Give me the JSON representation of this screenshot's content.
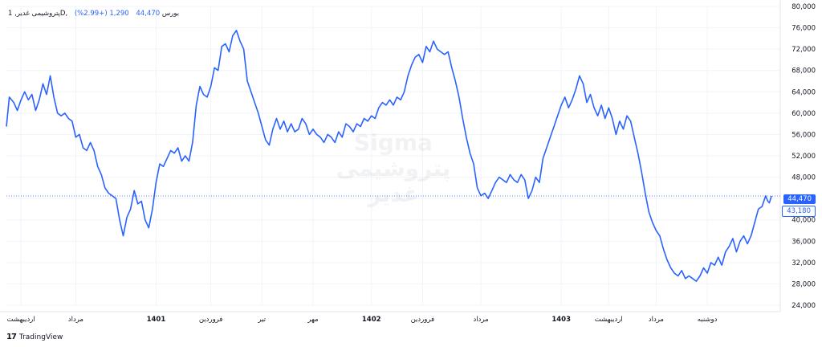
{
  "header": {
    "symbol_line": "پتروشیمی غدیر, 1D, بورس",
    "last": "44,470",
    "change": "1,290 (+2.99%)"
  },
  "watermark": {
    "brand": "Sigma",
    "name": "پتروشیمی غدیر"
  },
  "branding": {
    "logo": "17",
    "name": "TradingView"
  },
  "colors": {
    "line": "#2962ff",
    "grid": "#f0f3fa",
    "axis_text": "#131722"
  },
  "price_tags": {
    "last": "44,470",
    "low": "43,180"
  },
  "chart_data": {
    "type": "line",
    "title": "",
    "xlabel": "",
    "ylabel": "",
    "ylim": [
      24000,
      80000
    ],
    "y_ticks": [
      24000,
      28000,
      32000,
      36000,
      40000,
      44000,
      48000,
      52000,
      56000,
      60000,
      64000,
      68000,
      72000,
      76000,
      80000
    ],
    "y_tick_labels": [
      "24,000",
      "28,000",
      "32,000",
      "36,000",
      "40,000",
      "44,000",
      "48,000",
      "52,000",
      "56,000",
      "60,000",
      "64,000",
      "68,000",
      "72,000",
      "76,000",
      "80,000"
    ],
    "x_ticks": [
      {
        "label": "اردیبهشت",
        "pos": 2,
        "bold": false
      },
      {
        "label": "مرداد",
        "pos": 9.5,
        "bold": false
      },
      {
        "label": "1401",
        "pos": 20.5,
        "bold": true
      },
      {
        "label": "فروردین",
        "pos": 28,
        "bold": false
      },
      {
        "label": "تیر",
        "pos": 35,
        "bold": false
      },
      {
        "label": "مهر",
        "pos": 42,
        "bold": false
      },
      {
        "label": "1402",
        "pos": 50,
        "bold": true
      },
      {
        "label": "فروردین",
        "pos": 57,
        "bold": false
      },
      {
        "label": "مرداد",
        "pos": 65,
        "bold": false
      },
      {
        "label": "1403",
        "pos": 76,
        "bold": true
      },
      {
        "label": "اردیبهشت",
        "pos": 82.5,
        "bold": false
      },
      {
        "label": "مرداد",
        "pos": 89,
        "bold": false
      },
      {
        "label": "دوشنبه",
        "pos": 96,
        "bold": false
      }
    ],
    "last_price": 44470,
    "series": [
      {
        "color": "#2962ff",
        "points": [
          [
            0,
            57500
          ],
          [
            0.4,
            63000
          ],
          [
            1,
            62000
          ],
          [
            1.5,
            60500
          ],
          [
            2,
            62500
          ],
          [
            2.5,
            64000
          ],
          [
            3,
            62500
          ],
          [
            3.5,
            63500
          ],
          [
            4,
            60500
          ],
          [
            4.5,
            62500
          ],
          [
            5,
            65500
          ],
          [
            5.5,
            63500
          ],
          [
            6,
            67000
          ],
          [
            6.5,
            63000
          ],
          [
            7,
            60000
          ],
          [
            7.5,
            59500
          ],
          [
            8,
            60000
          ],
          [
            8.5,
            59000
          ],
          [
            9,
            58500
          ],
          [
            9.5,
            55500
          ],
          [
            10,
            56000
          ],
          [
            10.5,
            53500
          ],
          [
            11,
            53000
          ],
          [
            11.5,
            54500
          ],
          [
            12,
            53000
          ],
          [
            12.5,
            50000
          ],
          [
            13,
            48500
          ],
          [
            13.5,
            46000
          ],
          [
            14,
            45000
          ],
          [
            14.5,
            44500
          ],
          [
            15,
            44000
          ],
          [
            15.5,
            40000
          ],
          [
            16,
            37000
          ],
          [
            16.5,
            40500
          ],
          [
            17,
            42000
          ],
          [
            17.5,
            45500
          ],
          [
            18,
            43000
          ],
          [
            18.5,
            43500
          ],
          [
            19,
            40000
          ],
          [
            19.5,
            38500
          ],
          [
            20,
            42000
          ],
          [
            20.5,
            47000
          ],
          [
            21,
            50500
          ],
          [
            21.5,
            50000
          ],
          [
            22,
            51500
          ],
          [
            22.5,
            53000
          ],
          [
            23,
            52500
          ],
          [
            23.5,
            53500
          ],
          [
            24,
            51000
          ],
          [
            24.5,
            52000
          ],
          [
            25,
            51000
          ],
          [
            25.5,
            54500
          ],
          [
            26,
            61500
          ],
          [
            26.5,
            65000
          ],
          [
            27,
            63500
          ],
          [
            27.5,
            63000
          ],
          [
            28,
            65000
          ],
          [
            28.5,
            68500
          ],
          [
            29,
            68000
          ],
          [
            29.5,
            72500
          ],
          [
            30,
            73000
          ],
          [
            30.5,
            71500
          ],
          [
            31,
            74500
          ],
          [
            31.5,
            75500
          ],
          [
            32,
            73500
          ],
          [
            32.5,
            72000
          ],
          [
            33,
            66000
          ],
          [
            33.5,
            64000
          ],
          [
            34,
            62000
          ],
          [
            34.5,
            60000
          ],
          [
            35,
            57500
          ],
          [
            35.5,
            55000
          ],
          [
            36,
            54000
          ],
          [
            36.5,
            57000
          ],
          [
            37,
            59000
          ],
          [
            37.5,
            57000
          ],
          [
            38,
            58500
          ],
          [
            38.5,
            56500
          ],
          [
            39,
            58000
          ],
          [
            39.5,
            56500
          ],
          [
            40,
            57000
          ],
          [
            40.5,
            59000
          ],
          [
            41,
            58000
          ],
          [
            41.5,
            56000
          ],
          [
            42,
            57000
          ],
          [
            42.5,
            56000
          ],
          [
            43,
            55500
          ],
          [
            43.5,
            54500
          ],
          [
            44,
            56000
          ],
          [
            44.5,
            55500
          ],
          [
            45,
            54500
          ],
          [
            45.5,
            56500
          ],
          [
            46,
            55500
          ],
          [
            46.5,
            58000
          ],
          [
            47,
            57500
          ],
          [
            47.5,
            56500
          ],
          [
            48,
            58000
          ],
          [
            48.5,
            57500
          ],
          [
            49,
            59000
          ],
          [
            49.5,
            58500
          ],
          [
            50,
            59500
          ],
          [
            50.5,
            59000
          ],
          [
            51,
            61000
          ],
          [
            51.5,
            62000
          ],
          [
            52,
            61500
          ],
          [
            52.5,
            62500
          ],
          [
            53,
            61500
          ],
          [
            53.5,
            63000
          ],
          [
            54,
            62500
          ],
          [
            54.5,
            64000
          ],
          [
            55,
            67000
          ],
          [
            55.5,
            69000
          ],
          [
            56,
            70500
          ],
          [
            56.5,
            71000
          ],
          [
            57,
            69500
          ],
          [
            57.5,
            72500
          ],
          [
            58,
            71500
          ],
          [
            58.5,
            73500
          ],
          [
            59,
            72000
          ],
          [
            59.5,
            71500
          ],
          [
            60,
            71000
          ],
          [
            60.5,
            71500
          ],
          [
            61,
            68500
          ],
          [
            61.5,
            66000
          ],
          [
            62,
            63000
          ],
          [
            62.5,
            59000
          ],
          [
            63,
            55500
          ],
          [
            63.5,
            52500
          ],
          [
            64,
            50500
          ],
          [
            64.5,
            46000
          ],
          [
            65,
            44500
          ],
          [
            65.5,
            45000
          ],
          [
            66,
            44000
          ],
          [
            66.5,
            45500
          ],
          [
            67,
            47000
          ],
          [
            67.5,
            48000
          ],
          [
            68,
            47500
          ],
          [
            68.5,
            47000
          ],
          [
            69,
            48500
          ],
          [
            69.5,
            47500
          ],
          [
            70,
            47000
          ],
          [
            70.5,
            48500
          ],
          [
            71,
            47500
          ],
          [
            71.5,
            44000
          ],
          [
            72,
            45500
          ],
          [
            72.5,
            48000
          ],
          [
            73,
            47000
          ],
          [
            73.5,
            51500
          ],
          [
            74,
            53500
          ],
          [
            74.5,
            55500
          ],
          [
            75,
            57500
          ],
          [
            75.5,
            59500
          ],
          [
            76,
            61500
          ],
          [
            76.5,
            63000
          ],
          [
            77,
            61000
          ],
          [
            77.5,
            62500
          ],
          [
            78,
            64500
          ],
          [
            78.5,
            67000
          ],
          [
            79,
            65500
          ],
          [
            79.5,
            62000
          ],
          [
            80,
            63500
          ],
          [
            80.5,
            61000
          ],
          [
            81,
            59500
          ],
          [
            81.5,
            61500
          ],
          [
            82,
            59000
          ],
          [
            82.5,
            61000
          ],
          [
            83,
            59000
          ],
          [
            83.5,
            56000
          ],
          [
            84,
            58500
          ],
          [
            84.5,
            57000
          ],
          [
            85,
            59500
          ],
          [
            85.5,
            58500
          ],
          [
            86,
            55500
          ],
          [
            86.5,
            52500
          ],
          [
            87,
            49000
          ],
          [
            87.5,
            45000
          ],
          [
            88,
            41500
          ],
          [
            88.5,
            39500
          ],
          [
            89,
            38000
          ],
          [
            89.5,
            37000
          ],
          [
            90,
            34500
          ],
          [
            90.5,
            32500
          ],
          [
            91,
            31000
          ],
          [
            91.5,
            30000
          ],
          [
            92,
            29500
          ],
          [
            92.5,
            30500
          ],
          [
            93,
            29000
          ],
          [
            93.5,
            29500
          ],
          [
            94,
            29000
          ],
          [
            94.5,
            28500
          ],
          [
            95,
            29500
          ],
          [
            95.5,
            31000
          ],
          [
            96,
            30000
          ],
          [
            96.5,
            32000
          ],
          [
            97,
            31500
          ],
          [
            97.5,
            33000
          ],
          [
            98,
            31500
          ],
          [
            98.5,
            34000
          ],
          [
            99,
            35000
          ],
          [
            99.5,
            36500
          ],
          [
            100,
            34000
          ],
          [
            100.5,
            36000
          ],
          [
            101,
            37000
          ],
          [
            101.5,
            35500
          ],
          [
            102,
            37000
          ],
          [
            102.5,
            39500
          ],
          [
            103,
            42000
          ],
          [
            103.5,
            42500
          ],
          [
            104,
            44500
          ],
          [
            104.3,
            43500
          ],
          [
            104.5,
            43200
          ],
          [
            104.8,
            44470
          ]
        ]
      }
    ]
  }
}
